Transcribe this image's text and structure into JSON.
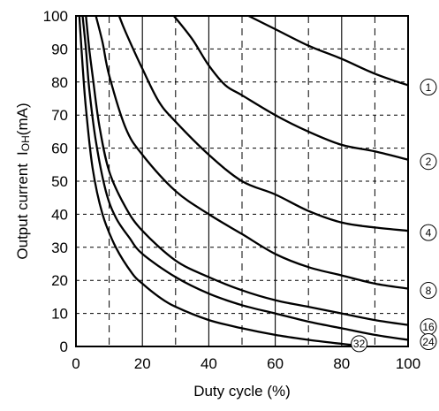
{
  "chart_data": {
    "type": "line",
    "xlabel": "Duty cycle (%)",
    "ylabel_text": "Output current",
    "ylabel_symbol_main": "I",
    "ylabel_symbol_sub": "OH",
    "ylabel_unit": "(mA)",
    "xlim": [
      0,
      100
    ],
    "ylim": [
      0,
      100
    ],
    "x_ticks": [
      0,
      20,
      40,
      60,
      80,
      100
    ],
    "y_ticks": [
      0,
      10,
      20,
      30,
      40,
      50,
      60,
      70,
      80,
      90,
      100
    ],
    "x_tick_labels": [
      "0",
      "20",
      "40",
      "60",
      "80",
      "100"
    ],
    "y_tick_labels": [
      "0",
      "10",
      "20",
      "30",
      "40",
      "50",
      "60",
      "70",
      "80",
      "90",
      "100"
    ],
    "grid": {
      "solid_x": [
        20,
        40,
        60,
        80
      ],
      "dashed_x": [
        10,
        30,
        50,
        70,
        90
      ],
      "dashed_y": [
        10,
        20,
        30,
        40,
        50,
        60,
        70,
        80,
        90
      ]
    },
    "line_color": "#000000",
    "series": [
      {
        "name": "1",
        "points": [
          [
            52,
            100
          ],
          [
            60,
            96
          ],
          [
            70,
            91
          ],
          [
            80,
            87
          ],
          [
            90,
            82.5
          ],
          [
            100,
            79
          ]
        ]
      },
      {
        "name": "2",
        "points": [
          [
            29.5,
            100
          ],
          [
            35,
            93
          ],
          [
            40,
            85
          ],
          [
            45,
            79
          ],
          [
            50,
            76
          ],
          [
            60,
            70
          ],
          [
            70,
            65
          ],
          [
            80,
            61
          ],
          [
            90,
            59
          ],
          [
            100,
            56.5
          ]
        ]
      },
      {
        "name": "4",
        "points": [
          [
            13,
            100
          ],
          [
            15,
            95
          ],
          [
            20,
            84
          ],
          [
            25,
            74
          ],
          [
            30,
            68
          ],
          [
            40,
            58
          ],
          [
            50,
            50
          ],
          [
            60,
            46
          ],
          [
            70,
            41
          ],
          [
            80,
            37.5
          ],
          [
            90,
            36
          ],
          [
            100,
            35
          ]
        ]
      },
      {
        "name": "8",
        "points": [
          [
            6,
            100
          ],
          [
            8,
            92
          ],
          [
            10,
            82
          ],
          [
            15,
            66
          ],
          [
            20,
            58
          ],
          [
            30,
            47
          ],
          [
            40,
            40
          ],
          [
            50,
            34
          ],
          [
            60,
            28
          ],
          [
            70,
            24
          ],
          [
            80,
            21.5
          ],
          [
            90,
            19
          ],
          [
            100,
            17.5
          ]
        ]
      },
      {
        "name": "16",
        "points": [
          [
            3,
            100
          ],
          [
            4,
            90
          ],
          [
            5,
            82
          ],
          [
            7,
            67
          ],
          [
            10,
            53
          ],
          [
            15,
            42
          ],
          [
            20,
            35
          ],
          [
            30,
            26
          ],
          [
            40,
            21
          ],
          [
            50,
            17
          ],
          [
            60,
            14
          ],
          [
            70,
            12
          ],
          [
            80,
            10
          ],
          [
            90,
            8
          ],
          [
            100,
            6.5
          ]
        ]
      },
      {
        "name": "24",
        "points": [
          [
            2,
            100
          ],
          [
            3,
            90
          ],
          [
            4,
            78
          ],
          [
            6,
            62
          ],
          [
            9,
            47
          ],
          [
            12,
            39
          ],
          [
            16,
            33
          ],
          [
            20,
            28
          ],
          [
            30,
            21
          ],
          [
            40,
            16
          ],
          [
            50,
            12.5
          ],
          [
            60,
            10
          ],
          [
            70,
            7.5
          ],
          [
            80,
            5.5
          ],
          [
            90,
            3.5
          ],
          [
            100,
            2
          ]
        ]
      },
      {
        "name": "32",
        "points": [
          [
            1,
            100
          ],
          [
            2,
            85
          ],
          [
            3,
            72
          ],
          [
            5,
            54
          ],
          [
            8,
            40
          ],
          [
            12,
            30
          ],
          [
            17,
            22
          ],
          [
            20,
            19
          ],
          [
            25,
            15
          ],
          [
            30,
            12
          ],
          [
            40,
            8
          ],
          [
            50,
            5.5
          ],
          [
            60,
            3.5
          ],
          [
            70,
            2
          ],
          [
            80,
            0.8
          ],
          [
            85,
            0.3
          ]
        ]
      }
    ]
  }
}
